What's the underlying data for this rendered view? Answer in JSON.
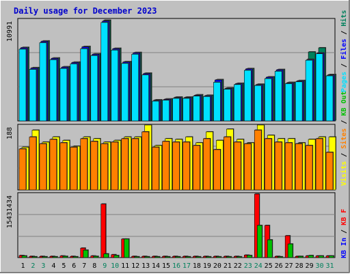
{
  "title": "Daily usage for December 2023",
  "colors": {
    "background": "#c0c0c0",
    "plot_bg": "#c0c0c0",
    "title": "#0000cc",
    "hits": "#00805c",
    "files": "#0000ff",
    "pages": "#00e0ff",
    "visits": "#ffff00",
    "sites": "#ff8000",
    "kbf": "#ff0000",
    "kbin": "#0000ff",
    "kbout": "#00c000",
    "weekend_day": "#00805c",
    "weekday": "#000000"
  },
  "chart_data": [
    {
      "type": "bar",
      "name": "top",
      "y_tick_label": "10991",
      "ylim": [
        0,
        10991
      ],
      "legend_right": [
        "Pages",
        "Files",
        "Hits"
      ],
      "series": [
        {
          "name": "Hits",
          "values": [
            8000,
            5800,
            8700,
            6850,
            5900,
            6400,
            8100,
            7300,
            10950,
            7900,
            6450,
            7450,
            5200,
            2300,
            2400,
            2600,
            2600,
            2850,
            2800,
            4500,
            3600,
            4100,
            5700,
            4000,
            4800,
            5600,
            4200,
            4400,
            7500,
            7950,
            5050
          ]
        },
        {
          "name": "Files",
          "values": [
            7950,
            5750,
            8650,
            6800,
            5850,
            6350,
            8050,
            7250,
            10850,
            7850,
            6400,
            7400,
            5150,
            2250,
            2350,
            2550,
            2550,
            2800,
            2750,
            4450,
            3550,
            4050,
            5650,
            3950,
            4750,
            5550,
            4150,
            4350,
            6700,
            7400,
            5000
          ]
        },
        {
          "name": "Pages",
          "values": [
            7800,
            5600,
            8500,
            6650,
            5700,
            6200,
            7850,
            7100,
            10700,
            7700,
            6250,
            7250,
            5000,
            2150,
            2250,
            2450,
            2450,
            2700,
            2650,
            4200,
            3450,
            3950,
            5500,
            3850,
            4600,
            5400,
            4050,
            4250,
            6600,
            7300,
            4900
          ]
        }
      ]
    },
    {
      "type": "bar",
      "name": "middle",
      "y_tick_label": "188",
      "ylim": [
        0,
        188
      ],
      "legend_right": [
        "Visits",
        "Sites",
        "Out",
        "KB"
      ],
      "series": [
        {
          "name": "Visits",
          "values": [
            125,
            175,
            140,
            155,
            145,
            128,
            155,
            150,
            140,
            145,
            155,
            155,
            190,
            130,
            150,
            148,
            155,
            138,
            170,
            145,
            178,
            148,
            138,
            190,
            160,
            150,
            150,
            138,
            148,
            155,
            155
          ]
        },
        {
          "name": "Sites",
          "values": [
            120,
            155,
            135,
            148,
            138,
            125,
            150,
            142,
            135,
            140,
            150,
            150,
            170,
            125,
            142,
            140,
            140,
            130,
            150,
            118,
            155,
            140,
            135,
            175,
            150,
            140,
            138,
            135,
            130,
            150,
            110
          ]
        }
      ]
    },
    {
      "type": "bar",
      "name": "bottom",
      "y_tick_label": "15431434",
      "ylim": [
        0,
        15431434
      ],
      "legend_right": [
        "KB In",
        "KB F"
      ],
      "series": [
        {
          "name": "KB F",
          "values": [
            500000,
            300000,
            300000,
            300000,
            400000,
            300000,
            2300000,
            400000,
            13000000,
            700000,
            4500000,
            300000,
            300000,
            300000,
            300000,
            300000,
            300000,
            300000,
            300000,
            300000,
            300000,
            300000,
            600000,
            15431434,
            7800000,
            300000,
            5300000,
            300000,
            400000,
            400000,
            400000
          ]
        },
        {
          "name": "KB In",
          "values": [
            400000,
            200000,
            200000,
            200000,
            300000,
            200000,
            1800000,
            300000,
            900000,
            500000,
            4500000,
            200000,
            200000,
            200000,
            200000,
            200000,
            200000,
            200000,
            200000,
            200000,
            200000,
            200000,
            500000,
            7800000,
            4300000,
            200000,
            3300000,
            300000,
            500000,
            400000,
            400000
          ]
        }
      ]
    }
  ],
  "x_categories": [
    "1",
    "2",
    "3",
    "4",
    "5",
    "6",
    "7",
    "8",
    "9",
    "10",
    "11",
    "12",
    "13",
    "14",
    "15",
    "16",
    "17",
    "18",
    "19",
    "20",
    "21",
    "22",
    "23",
    "24",
    "25",
    "26",
    "27",
    "28",
    "29",
    "30",
    "31"
  ],
  "weekend_days": [
    2,
    3,
    9,
    10,
    16,
    17,
    23,
    24,
    30,
    31
  ],
  "legend": {
    "top": [
      {
        "text": "Pages",
        "color": "#00e0ff"
      },
      {
        "text": "Files",
        "color": "#0000ff"
      },
      {
        "text": "Hits",
        "color": "#00805c"
      }
    ],
    "middle": [
      {
        "text": "Visits",
        "color": "#ffff00"
      },
      {
        "text": "Sites",
        "color": "#ff8000"
      },
      {
        "text": "KB Out",
        "color": "#00c000"
      }
    ],
    "bottom": [
      {
        "text": "KB In",
        "color": "#0000ff"
      },
      {
        "text": "KB F",
        "color": "#ff0000"
      }
    ]
  }
}
